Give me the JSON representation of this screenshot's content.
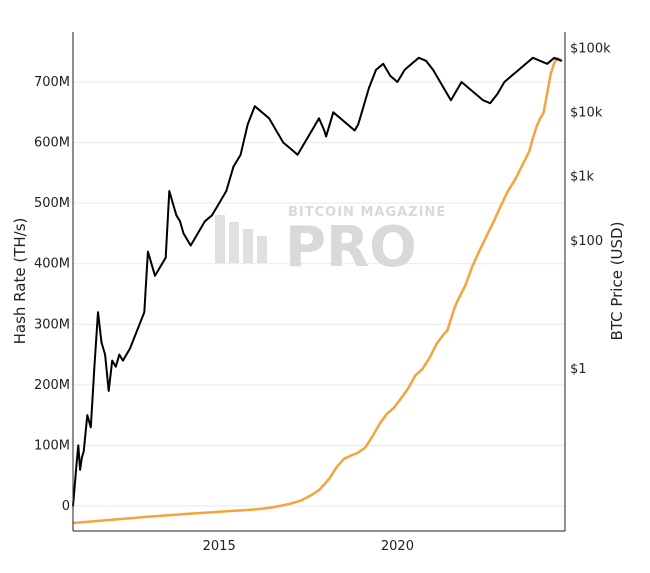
{
  "chart_data": {
    "type": "line",
    "x_axis": {
      "ticks": [
        {
          "value": 2015,
          "label": "2015"
        },
        {
          "value": 2020,
          "label": "2020"
        }
      ],
      "range": [
        2010.9,
        2024.7
      ]
    },
    "y_left": {
      "title": "Hash Rate (TH/s)",
      "range": [
        0,
        780
      ],
      "unit_note": "millions of TH/s",
      "ticks": [
        {
          "value": 0,
          "label": "0"
        },
        {
          "value": 100,
          "label": "100M"
        },
        {
          "value": 200,
          "label": "200M"
        },
        {
          "value": 300,
          "label": "300M"
        },
        {
          "value": 400,
          "label": "400M"
        },
        {
          "value": 500,
          "label": "500M"
        },
        {
          "value": 600,
          "label": "600M"
        },
        {
          "value": 700,
          "label": "700M"
        }
      ]
    },
    "y_right": {
      "title": "BTC Price (USD)",
      "scale": "log",
      "range": [
        0.003,
        180000
      ],
      "ticks": [
        {
          "value": 100000,
          "label": "$100k"
        },
        {
          "value": 10000,
          "label": "$10k"
        },
        {
          "value": 1000,
          "label": "$1k"
        },
        {
          "value": 100,
          "label": "$100"
        },
        {
          "value": 1,
          "label": "$1"
        }
      ]
    },
    "grid": true,
    "watermark": {
      "top": "BITCOIN MAGAZINE",
      "main": "PRO"
    },
    "series": [
      {
        "axis": "left",
        "color": "#000000",
        "x": [
          2010.9,
          2011.0,
          2011.05,
          2011.1,
          2011.15,
          2011.2,
          2011.3,
          2011.4,
          2011.5,
          2011.6,
          2011.7,
          2011.8,
          2011.9,
          2012.0,
          2012.1,
          2012.2,
          2012.3,
          2012.5,
          2012.7,
          2012.9,
          2013.0,
          2013.2,
          2013.4,
          2013.5,
          2013.6,
          2013.7,
          2013.8,
          2013.9,
          2014.0,
          2014.1,
          2014.2,
          2014.3,
          2014.4,
          2014.6,
          2014.8,
          2015.0,
          2015.2,
          2015.4,
          2015.6,
          2015.8,
          2016.0,
          2016.2,
          2016.4,
          2016.6,
          2016.8,
          2017.0,
          2017.2,
          2017.4,
          2017.6,
          2017.8,
          2017.95,
          2018.0,
          2018.1,
          2018.2,
          2018.4,
          2018.6,
          2018.8,
          2018.9,
          2019.0,
          2019.2,
          2019.4,
          2019.6,
          2019.8,
          2020.0,
          2020.2,
          2020.4,
          2020.6,
          2020.8,
          2021.0,
          2021.2,
          2021.3,
          2021.4,
          2021.5,
          2021.6,
          2021.7,
          2021.8,
          2022.0,
          2022.2,
          2022.4,
          2022.6,
          2022.8,
          2023.0,
          2023.2,
          2023.4,
          2023.6,
          2023.8,
          2024.0,
          2024.2,
          2024.4,
          2024.6
        ],
        "y": [
          0,
          70,
          100,
          60,
          80,
          90,
          150,
          130,
          230,
          320,
          270,
          250,
          190,
          240,
          230,
          250,
          240,
          260,
          290,
          320,
          420,
          380,
          400,
          410,
          520,
          500,
          480,
          470,
          450,
          440,
          430,
          440,
          450,
          470,
          480,
          500,
          520,
          560,
          580,
          630,
          660,
          650,
          640,
          620,
          600,
          590,
          580,
          600,
          620,
          640,
          620,
          610,
          630,
          650,
          640,
          630,
          620,
          630,
          650,
          690,
          720,
          730,
          710,
          700,
          720,
          730,
          740,
          735,
          720,
          700,
          690,
          680,
          670,
          680,
          690,
          700,
          690,
          680,
          670,
          665,
          680,
          700,
          710,
          720,
          730,
          740,
          735,
          730,
          740,
          735
        ]
      },
      {
        "axis": "right",
        "color": "#f5a33c",
        "x": [
          2010.9,
          2012.0,
          2013.0,
          2014.0,
          2015.0,
          2016.0,
          2016.5,
          2017.0,
          2017.3,
          2017.6,
          2017.8,
          2017.95,
          2018.1,
          2018.3,
          2018.5,
          2018.7,
          2018.9,
          2019.1,
          2019.3,
          2019.5,
          2019.7,
          2019.9,
          2020.1,
          2020.3,
          2020.5,
          2020.7,
          2020.9,
          2021.1,
          2021.3,
          2021.4,
          2021.5,
          2021.6,
          2021.7,
          2021.9,
          2022.1,
          2022.3,
          2022.5,
          2022.7,
          2022.9,
          2023.1,
          2023.3,
          2023.5,
          2023.7,
          2023.8,
          2023.9,
          2024.0,
          2024.1,
          2024.2,
          2024.3,
          2024.4,
          2024.5,
          2024.6
        ],
        "y": [
          0.004,
          0.0045,
          0.005,
          0.0055,
          0.006,
          0.0065,
          0.007,
          0.008,
          0.009,
          0.011,
          0.013,
          0.016,
          0.02,
          0.03,
          0.04,
          0.045,
          0.05,
          0.06,
          0.09,
          0.14,
          0.2,
          0.25,
          0.35,
          0.5,
          0.8,
          1.0,
          1.5,
          2.5,
          3.5,
          4.0,
          6.0,
          9.0,
          12.0,
          20.0,
          40.0,
          70.0,
          120.0,
          200.0,
          350.0,
          600.0,
          900.0,
          1500.0,
          2500.0,
          4000.0,
          6000.0,
          8000.0,
          10000.0,
          20000.0,
          40000.0,
          60000.0,
          70000.0,
          65000.0
        ]
      }
    ]
  }
}
